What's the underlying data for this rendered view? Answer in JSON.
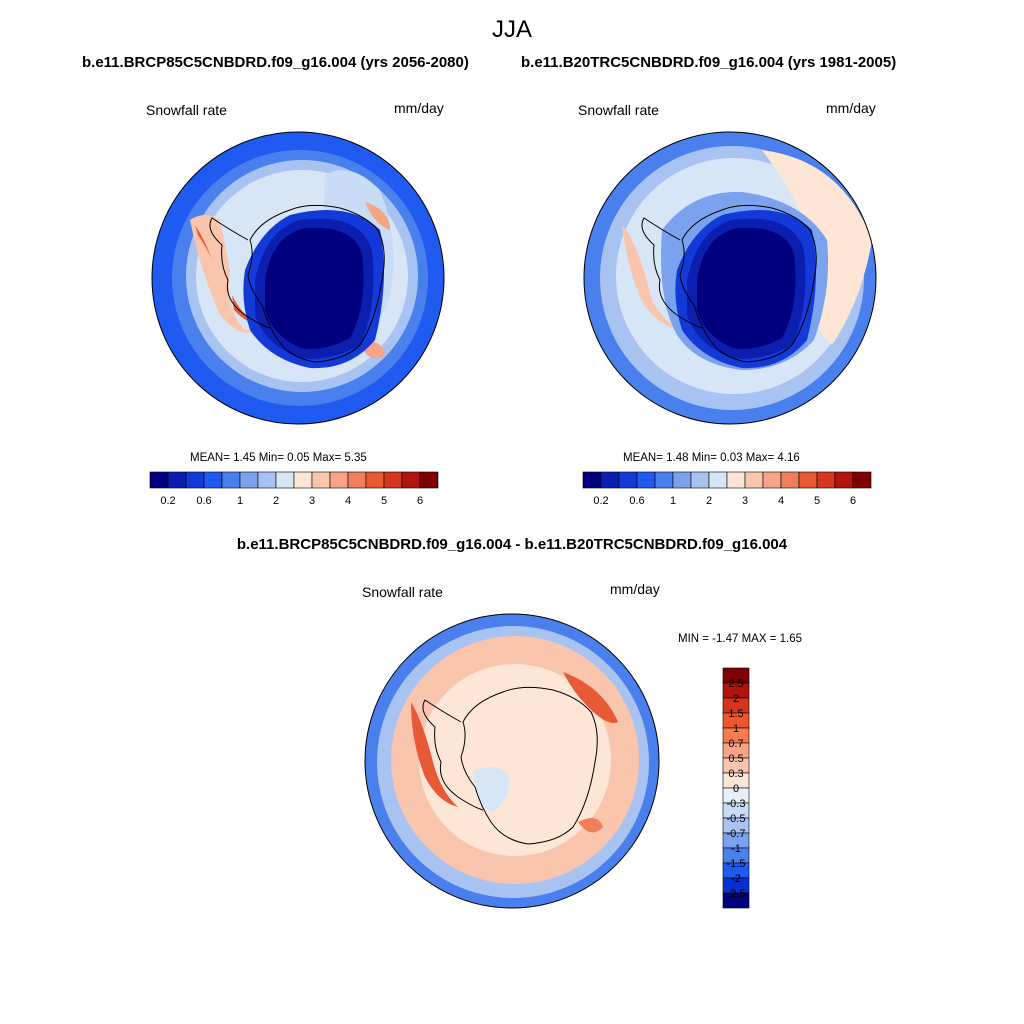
{
  "figure": {
    "title": "JJA",
    "left_case_title": "b.e11.BRCP85C5CNBDRD.f09_g16.004 (yrs 2056-2080)",
    "right_case_title": "b.e11.B20TRC5CNBDRD.f09_g16.004 (yrs 1981-2005)",
    "diff_title": "b.e11.BRCP85C5CNBDRD.f09_g16.004 - b.e11.B20TRC5CNBDRD.f09_g16.004"
  },
  "panels": [
    {
      "id": "future",
      "variable": "Snowfall rate",
      "units": "mm/day",
      "stats": "MEAN=   1.45  Min=   0.05  Max=   5.35"
    },
    {
      "id": "historical",
      "variable": "Snowfall rate",
      "units": "mm/day",
      "stats": "MEAN=   1.48  Min=   0.03  Max=   4.16"
    },
    {
      "id": "difference",
      "variable": "Snowfall rate",
      "units": "mm/day",
      "stats": "MIN =  -1.47 MAX =   1.65"
    }
  ],
  "colorbar_main": {
    "orientation": "horizontal",
    "colors": [
      "#00007f",
      "#0a1fb0",
      "#1339d9",
      "#1f5bf0",
      "#4a7fee",
      "#7aa2ef",
      "#a8c3f2",
      "#d6e6f6",
      "#fde6d6",
      "#f9c5ad",
      "#f6a386",
      "#f07e5c",
      "#e85a35",
      "#d3361c",
      "#b0150d",
      "#7f0000"
    ],
    "tick_labels": [
      "0.2",
      "0.6",
      "1",
      "2",
      "3",
      "4",
      "5",
      "6"
    ]
  },
  "colorbar_diff": {
    "orientation": "vertical",
    "colors_top_to_bottom": [
      "#7f0000",
      "#b0150d",
      "#d3361c",
      "#f0552b",
      "#f57b50",
      "#f6a386",
      "#f9c5ad",
      "#fde6d6",
      "#e6f0fb",
      "#c6dbf5",
      "#a8c3f2",
      "#7aa2ef",
      "#4a7fee",
      "#1f5bf0",
      "#0a2fd0",
      "#00007f"
    ],
    "tick_labels_top_to_bottom": [
      "2.5",
      "2",
      "1.5",
      "1",
      "0.7",
      "0.5",
      "0.3",
      "0",
      "-0.3",
      "-0.5",
      "-0.7",
      "-1",
      "-1.5",
      "-2",
      "-2.5"
    ]
  },
  "colors": {
    "antarctic_interior_mean": "#00007f",
    "ocean_mean": "#d6e6f6",
    "antarctic_interior_diff": "#fde6d6",
    "ocean_diff": "#f9c5ad",
    "coastline": "#000000"
  }
}
